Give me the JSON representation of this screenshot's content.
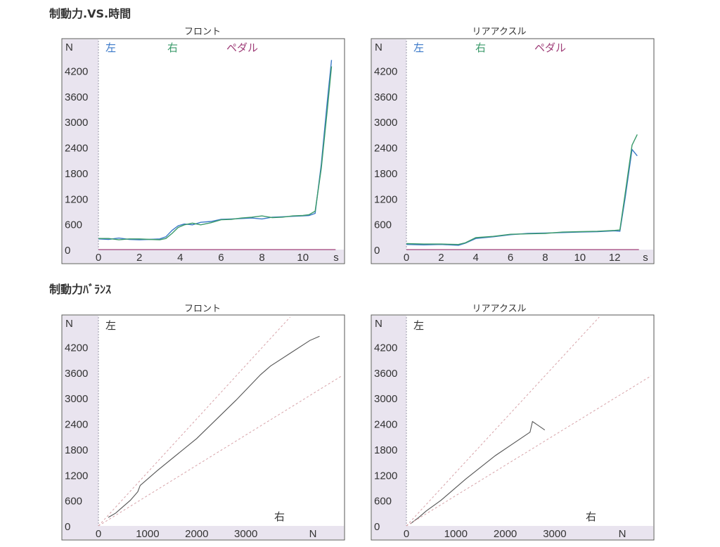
{
  "sections": {
    "time_title": "制動力.VS.時間",
    "balance_title": "制動力ﾊﾞﾗﾝｽ"
  },
  "colors": {
    "left": "#3a78c8",
    "right": "#3a9a6a",
    "pedal": "#a0407a",
    "balance_line": "#555555",
    "guide": "#d7a2a8",
    "axis_bg": "#e9e4ef"
  },
  "chart_data": [
    {
      "type": "line",
      "title": "フロント",
      "y_unit": "N",
      "x_unit": "s",
      "legend": [
        "左",
        "右",
        "ペダル"
      ],
      "yticks": [
        "0",
        "600",
        "1200",
        "1800",
        "2400",
        "3000",
        "3600",
        "4200"
      ],
      "xticks": [
        "0",
        "2",
        "4",
        "6",
        "8",
        "10"
      ],
      "xlim": [
        0,
        11.9
      ],
      "ylim": [
        0,
        4900
      ],
      "series": [
        {
          "name": "左",
          "points": [
            [
              0,
              250
            ],
            [
              0.5,
              240
            ],
            [
              1,
              270
            ],
            [
              1.5,
              240
            ],
            [
              2,
              230
            ],
            [
              2.5,
              240
            ],
            [
              3,
              250
            ],
            [
              3.3,
              300
            ],
            [
              3.6,
              450
            ],
            [
              3.9,
              560
            ],
            [
              4.2,
              600
            ],
            [
              4.6,
              580
            ],
            [
              5,
              640
            ],
            [
              5.5,
              660
            ],
            [
              6,
              710
            ],
            [
              6.5,
              720
            ],
            [
              7,
              730
            ],
            [
              7.5,
              740
            ],
            [
              8,
              720
            ],
            [
              8.5,
              760
            ],
            [
              9,
              770
            ],
            [
              9.5,
              780
            ],
            [
              10,
              790
            ],
            [
              10.3,
              800
            ],
            [
              10.6,
              850
            ],
            [
              10.9,
              2000
            ],
            [
              11.2,
              3500
            ],
            [
              11.4,
              4450
            ]
          ]
        },
        {
          "name": "右",
          "points": [
            [
              0,
              260
            ],
            [
              0.5,
              260
            ],
            [
              1,
              230
            ],
            [
              1.5,
              250
            ],
            [
              2,
              250
            ],
            [
              2.5,
              240
            ],
            [
              3,
              230
            ],
            [
              3.3,
              260
            ],
            [
              3.6,
              380
            ],
            [
              3.9,
              520
            ],
            [
              4.2,
              580
            ],
            [
              4.6,
              620
            ],
            [
              5,
              580
            ],
            [
              5.5,
              630
            ],
            [
              6,
              700
            ],
            [
              6.5,
              710
            ],
            [
              7,
              740
            ],
            [
              7.5,
              760
            ],
            [
              8,
              790
            ],
            [
              8.5,
              750
            ],
            [
              9,
              760
            ],
            [
              9.5,
              790
            ],
            [
              10,
              800
            ],
            [
              10.3,
              820
            ],
            [
              10.6,
              900
            ],
            [
              10.9,
              1900
            ],
            [
              11.2,
              3300
            ],
            [
              11.4,
              4300
            ]
          ]
        },
        {
          "name": "ペダル",
          "points": [
            [
              0,
              0
            ],
            [
              11.6,
              0
            ]
          ]
        }
      ]
    },
    {
      "type": "line",
      "title": "リアアクスル",
      "y_unit": "N",
      "x_unit": "s",
      "legend": [
        "左",
        "右",
        "ペダル"
      ],
      "yticks": [
        "0",
        "600",
        "1200",
        "1800",
        "2400",
        "3000",
        "3600",
        "4200"
      ],
      "xticks": [
        "0",
        "2",
        "4",
        "6",
        "8",
        "10",
        "12"
      ],
      "xlim": [
        0,
        14.1
      ],
      "ylim": [
        0,
        4900
      ],
      "series": [
        {
          "name": "左",
          "points": [
            [
              0,
              120
            ],
            [
              1,
              110
            ],
            [
              2,
              120
            ],
            [
              3,
              100
            ],
            [
              3.4,
              150
            ],
            [
              4,
              260
            ],
            [
              5,
              300
            ],
            [
              6,
              350
            ],
            [
              7,
              380
            ],
            [
              8,
              390
            ],
            [
              9,
              400
            ],
            [
              10,
              410
            ],
            [
              11,
              420
            ],
            [
              12,
              440
            ],
            [
              12.3,
              430
            ],
            [
              12.6,
              1200
            ],
            [
              13,
              2350
            ],
            [
              13.3,
              2200
            ]
          ]
        },
        {
          "name": "右",
          "points": [
            [
              0,
              140
            ],
            [
              1,
              130
            ],
            [
              2,
              130
            ],
            [
              3,
              120
            ],
            [
              3.4,
              160
            ],
            [
              4,
              280
            ],
            [
              5,
              310
            ],
            [
              6,
              360
            ],
            [
              7,
              370
            ],
            [
              8,
              380
            ],
            [
              9,
              410
            ],
            [
              10,
              420
            ],
            [
              11,
              430
            ],
            [
              12,
              450
            ],
            [
              12.3,
              460
            ],
            [
              12.6,
              1300
            ],
            [
              13,
              2450
            ],
            [
              13.3,
              2700
            ]
          ]
        },
        {
          "name": "ペダル",
          "points": [
            [
              0,
              0
            ],
            [
              13.4,
              0
            ]
          ]
        }
      ]
    },
    {
      "type": "line",
      "title": "フロント",
      "y_unit": "N",
      "x_unit": "N",
      "corner_left": "左",
      "corner_right": "右",
      "yticks": [
        "0",
        "600",
        "1200",
        "1800",
        "2400",
        "3000",
        "3600",
        "4200"
      ],
      "xticks": [
        "0",
        "1000",
        "2000",
        "3000"
      ],
      "xlim": [
        0,
        4950
      ],
      "ylim": [
        0,
        4900
      ],
      "series": [
        {
          "name": "balance",
          "points": [
            [
              200,
              200
            ],
            [
              350,
              300
            ],
            [
              500,
              450
            ],
            [
              650,
              600
            ],
            [
              800,
              800
            ],
            [
              850,
              950
            ],
            [
              1200,
              1300
            ],
            [
              2000,
              2050
            ],
            [
              2800,
              2950
            ],
            [
              3300,
              3550
            ],
            [
              3500,
              3750
            ],
            [
              3900,
              4050
            ],
            [
              4300,
              4350
            ],
            [
              4500,
              4450
            ]
          ]
        },
        {
          "name": "guide_upper",
          "points": [
            [
              0,
              0
            ],
            [
              3900,
              4900
            ]
          ]
        },
        {
          "name": "guide_lower",
          "points": [
            [
              0,
              0
            ],
            [
              4950,
              3520
            ]
          ]
        }
      ]
    },
    {
      "type": "line",
      "title": "リアアクスル",
      "y_unit": "N",
      "x_unit": "N",
      "corner_left": "左",
      "corner_right": "右",
      "yticks": [
        "0",
        "600",
        "1200",
        "1800",
        "2400",
        "3000",
        "3600",
        "4200"
      ],
      "xticks": [
        "0",
        "1000",
        "2000",
        "3000"
      ],
      "xlim": [
        0,
        4950
      ],
      "ylim": [
        0,
        4900
      ],
      "series": [
        {
          "name": "balance",
          "points": [
            [
              80,
              50
            ],
            [
              250,
              200
            ],
            [
              400,
              350
            ],
            [
              700,
              600
            ],
            [
              1200,
              1100
            ],
            [
              1800,
              1650
            ],
            [
              2500,
              2200
            ],
            [
              2550,
              2450
            ],
            [
              2800,
              2250
            ]
          ]
        },
        {
          "name": "guide_upper",
          "points": [
            [
              0,
              0
            ],
            [
              3900,
              4900
            ]
          ]
        },
        {
          "name": "guide_lower",
          "points": [
            [
              0,
              0
            ],
            [
              4950,
              3520
            ]
          ]
        }
      ]
    }
  ]
}
